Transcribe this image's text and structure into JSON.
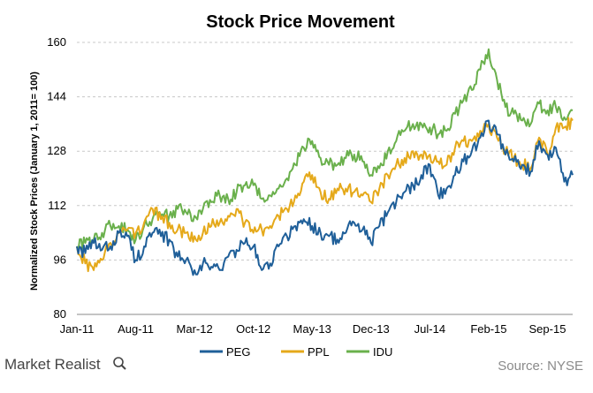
{
  "chart_data": {
    "type": "line",
    "title": "Stock Price Movement",
    "ylabel": "Normalized Stock Prices (January 1, 2011= 100)",
    "xlabel": "",
    "ylim": [
      80,
      160
    ],
    "yticks": [
      80,
      96,
      112,
      128,
      144,
      160
    ],
    "xticks": [
      "Jan-11",
      "Aug-11",
      "Mar-12",
      "Oct-12",
      "May-13",
      "Dec-13",
      "Jul-14",
      "Feb-15",
      "Sep-15"
    ],
    "grid": "horizontal dashed",
    "legend_position": "bottom-center",
    "x": [
      "Jan-11",
      "Feb-11",
      "Mar-11",
      "Apr-11",
      "May-11",
      "Jun-11",
      "Jul-11",
      "Aug-11",
      "Sep-11",
      "Oct-11",
      "Nov-11",
      "Dec-11",
      "Jan-12",
      "Feb-12",
      "Mar-12",
      "Apr-12",
      "May-12",
      "Jun-12",
      "Jul-12",
      "Aug-12",
      "Sep-12",
      "Oct-12",
      "Nov-12",
      "Dec-12",
      "Jan-13",
      "Feb-13",
      "Mar-13",
      "Apr-13",
      "May-13",
      "Jun-13",
      "Jul-13",
      "Aug-13",
      "Sep-13",
      "Oct-13",
      "Nov-13",
      "Dec-13",
      "Jan-14",
      "Feb-14",
      "Mar-14",
      "Apr-14",
      "May-14",
      "Jun-14",
      "Jul-14",
      "Aug-14",
      "Sep-14",
      "Oct-14",
      "Nov-14",
      "Dec-14",
      "Jan-15",
      "Feb-15",
      "Mar-15",
      "Apr-15",
      "May-15",
      "Jun-15",
      "Jul-15",
      "Aug-15",
      "Sep-15",
      "Oct-15",
      "Nov-15",
      "Dec-15"
    ],
    "series": [
      {
        "name": "PEG",
        "color": "#1f5f99",
        "values": [
          100,
          98,
          101,
          99,
          100,
          104,
          103,
          96,
          100,
          104,
          103,
          102,
          97,
          96,
          93,
          95,
          94,
          93,
          97,
          99,
          101,
          100,
          93,
          95,
          100,
          103,
          106,
          108,
          106,
          104,
          103,
          102,
          104,
          107,
          105,
          101,
          106,
          110,
          113,
          116,
          118,
          121,
          124,
          115,
          117,
          121,
          125,
          128,
          132,
          137,
          133,
          127,
          125,
          124,
          122,
          131,
          127,
          129,
          119,
          121
        ]
      },
      {
        "name": "PPL",
        "color": "#e5a91a",
        "values": [
          100,
          95,
          93,
          96,
          101,
          104,
          105,
          104,
          107,
          111,
          108,
          107,
          105,
          104,
          103,
          104,
          106,
          107,
          109,
          111,
          107,
          104,
          105,
          106,
          109,
          111,
          115,
          119,
          121,
          116,
          114,
          117,
          117,
          116,
          115,
          113,
          117,
          121,
          124,
          126,
          128,
          127,
          127,
          125,
          124,
          129,
          131,
          131,
          134,
          136,
          132,
          128,
          126,
          124,
          123,
          132,
          127,
          135,
          135,
          137
        ]
      },
      {
        "name": "IDU",
        "color": "#6ab04c",
        "values": [
          100,
          101,
          102,
          104,
          106,
          106,
          105,
          102,
          106,
          108,
          109,
          109,
          111,
          110,
          109,
          111,
          113,
          115,
          114,
          116,
          118,
          118,
          114,
          115,
          117,
          120,
          124,
          129,
          131,
          126,
          124,
          124,
          126,
          127,
          125,
          121,
          123,
          128,
          131,
          134,
          136,
          136,
          135,
          133,
          134,
          139,
          143,
          146,
          152,
          158,
          149,
          141,
          139,
          137,
          136,
          142,
          140,
          141,
          138,
          140
        ]
      }
    ]
  },
  "legend": {
    "items": [
      {
        "label": "PEG",
        "color": "#1f5f99"
      },
      {
        "label": "PPL",
        "color": "#e5a91a"
      },
      {
        "label": "IDU",
        "color": "#6ab04c"
      }
    ]
  },
  "footer": {
    "brand": "Market Realist",
    "brand_icon": "magnifier-icon",
    "source": "Source: NYSE"
  }
}
